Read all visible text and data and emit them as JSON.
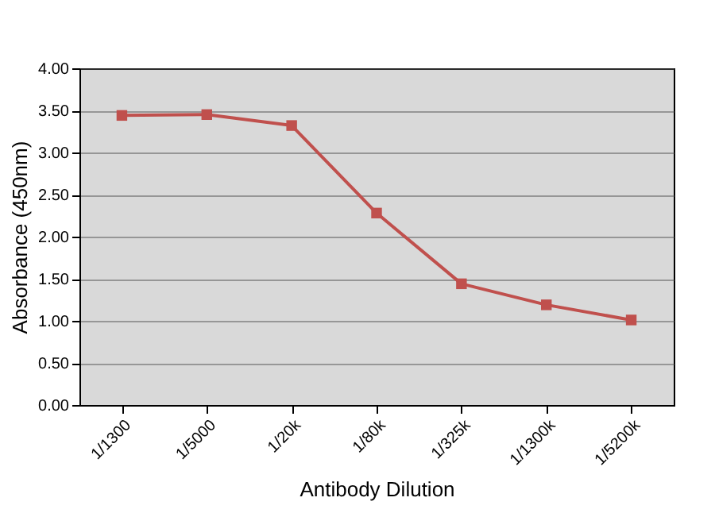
{
  "chart_data": {
    "type": "line",
    "xlabel": "Antibody Dilution",
    "ylabel": "Absorbance (450nm)",
    "categories": [
      "1/1300",
      "1/5000",
      "1/20k",
      "1/80k",
      "1/325k",
      "1/1300k",
      "1/5200k"
    ],
    "series": [
      {
        "color": "#c0504d",
        "values": [
          3.44,
          3.45,
          3.32,
          2.28,
          1.44,
          1.19,
          1.01
        ]
      }
    ],
    "ylim": [
      0,
      4
    ],
    "yticks": [
      {
        "value": 0,
        "label": "0.00"
      },
      {
        "value": 0.5,
        "label": "0.50"
      },
      {
        "value": 1,
        "label": "1.00"
      },
      {
        "value": 1.5,
        "label": "1.50"
      },
      {
        "value": 2,
        "label": "2.00"
      },
      {
        "value": 2.5,
        "label": "2.50"
      },
      {
        "value": 3,
        "label": "3.00"
      },
      {
        "value": 3.5,
        "label": "3.50"
      },
      {
        "value": 4,
        "label": "4.00"
      }
    ],
    "grid": "y",
    "marker": "square",
    "line_style": "solid"
  }
}
